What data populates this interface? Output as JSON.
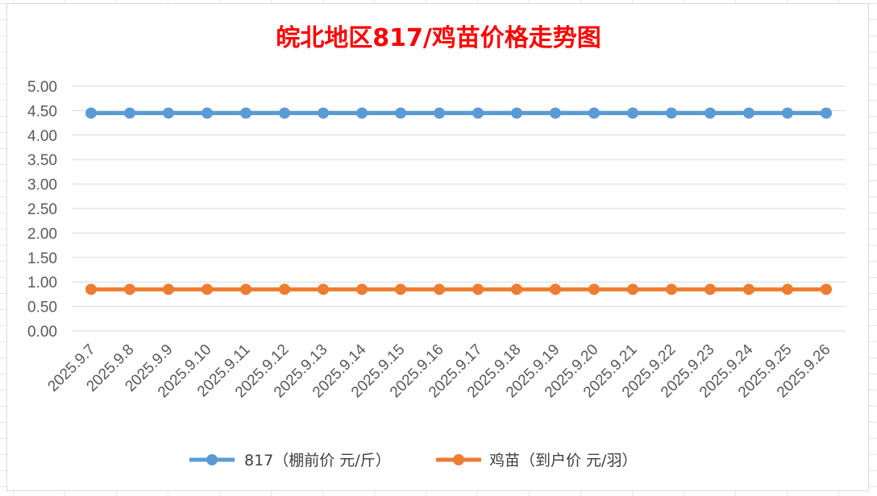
{
  "colors": {
    "title": "#ff0000",
    "series_817": "#5b9bd5",
    "series_chick": "#ed7d31",
    "grid": "#d9d9d9",
    "tick_text": "#595959"
  },
  "chart_data": {
    "type": "line",
    "title": "皖北地区817/鸡苗价格走势图",
    "categories": [
      "2025.9.7",
      "2025.9.8",
      "2025.9.9",
      "2025.9.10",
      "2025.9.11",
      "2025.9.12",
      "2025.9.13",
      "2025.9.14",
      "2025.9.15",
      "2025.9.16",
      "2025.9.17",
      "2025.9.18",
      "2025.9.19",
      "2025.9.20",
      "2025.9.21",
      "2025.9.22",
      "2025.9.23",
      "2025.9.24",
      "2025.9.25",
      "2025.9.26"
    ],
    "yticks": [
      "0.00",
      "0.50",
      "1.00",
      "1.50",
      "2.00",
      "2.50",
      "3.00",
      "3.50",
      "4.00",
      "4.50",
      "5.00"
    ],
    "ylim": [
      0,
      5
    ],
    "grid": true,
    "legend_position": "bottom",
    "series": [
      {
        "name": "817（棚前价 元/斤）",
        "color": "#5b9bd5",
        "values": [
          4.45,
          4.45,
          4.45,
          4.45,
          4.45,
          4.45,
          4.45,
          4.45,
          4.45,
          4.45,
          4.45,
          4.45,
          4.45,
          4.45,
          4.45,
          4.45,
          4.45,
          4.45,
          4.45,
          4.45
        ]
      },
      {
        "name": "鸡苗（到户价 元/羽）",
        "color": "#ed7d31",
        "values": [
          0.85,
          0.85,
          0.85,
          0.85,
          0.85,
          0.85,
          0.85,
          0.85,
          0.85,
          0.85,
          0.85,
          0.85,
          0.85,
          0.85,
          0.85,
          0.85,
          0.85,
          0.85,
          0.85,
          0.85
        ]
      }
    ]
  }
}
